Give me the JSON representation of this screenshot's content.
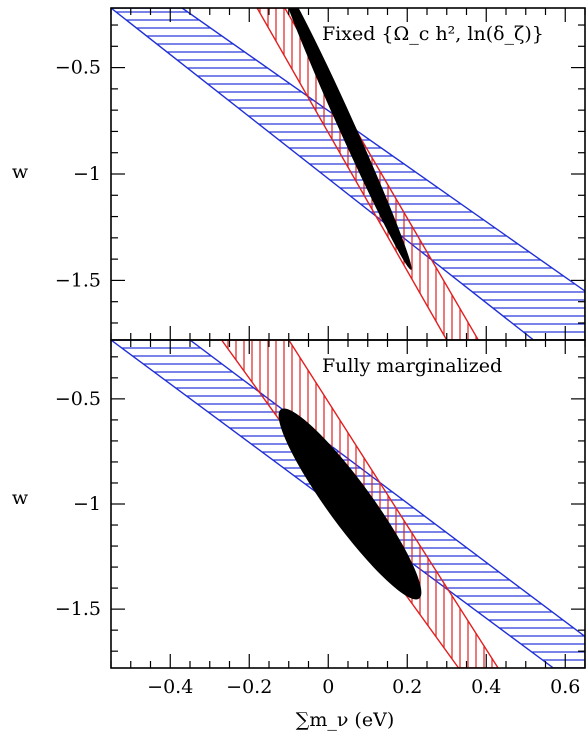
{
  "chart_data": [
    {
      "type": "line",
      "title": "Fixed {Ω_c h², ln(δ_ζ)}",
      "xlabel": "∑m_ν (eV)",
      "ylabel": "w",
      "xlim": [
        -0.55,
        0.65
      ],
      "ylim": [
        -1.78,
        -0.22
      ],
      "xticks": [
        -0.4,
        -0.2,
        0,
        0.2,
        0.4,
        0.6
      ],
      "xtick_labels": [
        "−0.4",
        "−0.2",
        "0",
        "0.2",
        "0.4",
        "0.6"
      ],
      "yticks": [
        -0.5,
        -1,
        -1.5
      ],
      "ytick_labels": [
        "−0.5",
        "−1",
        "−1.5"
      ],
      "series": [
        {
          "color": "#2030d8",
          "hatch": "horizontal",
          "band": [
            [
              -0.55,
              -0.22
            ],
            [
              -0.37,
              -0.22
            ],
            [
              0.65,
              -1.55
            ],
            [
              0.65,
              -1.78
            ],
            [
              0.52,
              -1.78
            ]
          ]
        },
        {
          "color": "#e02020",
          "hatch": "vertical",
          "band": [
            [
              -0.18,
              -0.22
            ],
            [
              -0.11,
              -0.22
            ],
            [
              0.38,
              -1.78
            ],
            [
              0.3,
              -1.78
            ]
          ]
        },
        {
          "color": "#000000",
          "shape": "filled-ellipse",
          "ellipse": {
            "cx": 0.06,
            "cy": -1.01,
            "w_min": -0.09,
            "w_max": -1.45,
            "sum_min": -0.12,
            "sum_max": 0.21
          }
        }
      ]
    },
    {
      "type": "line",
      "title": "Fully marginalized",
      "xlabel": "∑m_ν (eV)",
      "ylabel": "w",
      "xlim": [
        -0.55,
        0.65
      ],
      "ylim": [
        -1.78,
        -0.22
      ],
      "xticks": [
        -0.4,
        -0.2,
        0,
        0.2,
        0.4,
        0.6
      ],
      "xtick_labels": [
        "−0.4",
        "−0.2",
        "0",
        "0.2",
        "0.4",
        "0.6"
      ],
      "yticks": [
        -0.5,
        -1,
        -1.5
      ],
      "ytick_labels": [
        "−0.5",
        "−1",
        "−1.5"
      ],
      "series": [
        {
          "color": "#2030d8",
          "hatch": "horizontal",
          "band": [
            [
              -0.55,
              -0.22
            ],
            [
              -0.35,
              -0.22
            ],
            [
              0.65,
              -1.63
            ],
            [
              0.65,
              -1.78
            ],
            [
              0.57,
              -1.78
            ]
          ]
        },
        {
          "color": "#e02020",
          "hatch": "vertical",
          "band": [
            [
              -0.27,
              -0.22
            ],
            [
              -0.1,
              -0.22
            ],
            [
              0.43,
              -1.78
            ],
            [
              0.33,
              -1.78
            ]
          ]
        },
        {
          "color": "#000000",
          "shape": "filled-ellipse",
          "ellipse": {
            "cx": 0.06,
            "cy": -1.0,
            "w_min": -0.55,
            "w_max": -1.45,
            "sum_min": -0.12,
            "sum_max": 0.23
          }
        }
      ]
    }
  ]
}
